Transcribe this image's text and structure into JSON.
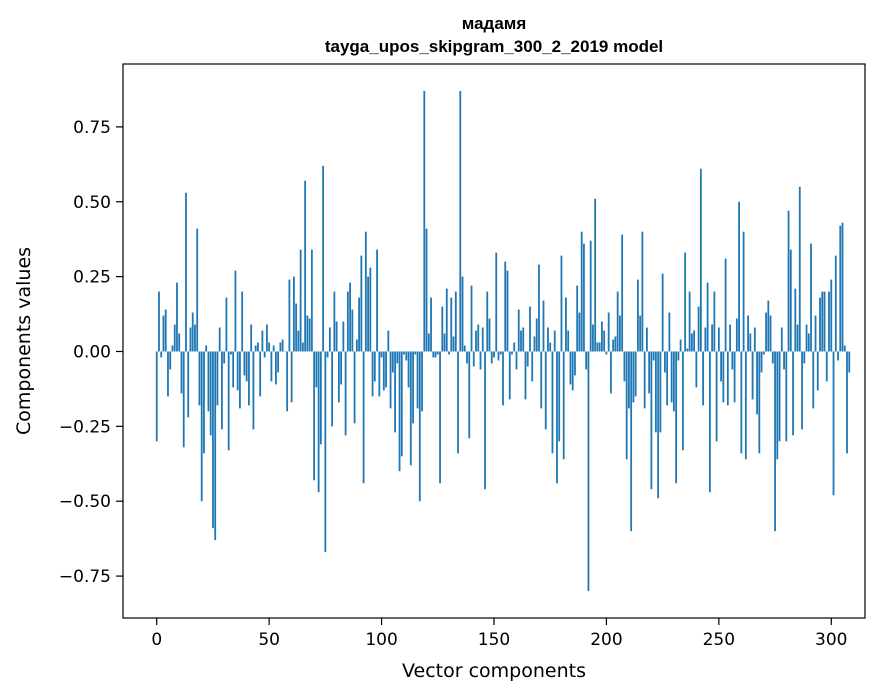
{
  "chart_data": {
    "type": "bar",
    "title": "мадамя",
    "subtitle": "tayga_upos_skipgram_300_2_2019 model",
    "xlabel": "Vector components",
    "ylabel": "Components values",
    "xlim": [
      -15,
      315
    ],
    "ylim": [
      -0.89,
      0.96
    ],
    "xticks": [
      0,
      50,
      100,
      150,
      200,
      250,
      300
    ],
    "xtick_labels": [
      "0",
      "50",
      "100",
      "150",
      "200",
      "250",
      "300"
    ],
    "yticks": [
      -0.75,
      -0.5,
      -0.25,
      0.0,
      0.25,
      0.5,
      0.75
    ],
    "ytick_labels": [
      "−0.75",
      "−0.50",
      "−0.25",
      "0.00",
      "0.25",
      "0.50",
      "0.75"
    ],
    "grid": false,
    "bar_color": "#1f77b4",
    "series": [
      {
        "values": [
          -0.3,
          0.2,
          -0.02,
          0.12,
          0.14,
          -0.15,
          -0.06,
          0.02,
          0.09,
          0.23,
          0.06,
          -0.14,
          -0.32,
          0.53,
          -0.22,
          0.08,
          0.13,
          0.09,
          0.41,
          -0.18,
          -0.5,
          -0.34,
          0.02,
          -0.2,
          -0.28,
          -0.59,
          -0.63,
          -0.18,
          0.08,
          -0.26,
          -0.04,
          0.18,
          -0.33,
          -0.01,
          -0.12,
          0.27,
          -0.13,
          -0.19,
          0.2,
          -0.08,
          -0.1,
          -0.18,
          0.09,
          -0.26,
          0.02,
          0.03,
          -0.15,
          0.07,
          -0.02,
          0.09,
          0.03,
          -0.1,
          0.02,
          -0.11,
          -0.07,
          0.03,
          0.04,
          0.0,
          -0.2,
          0.24,
          -0.17,
          0.25,
          0.16,
          0.07,
          0.34,
          0.03,
          0.57,
          0.12,
          0.11,
          0.34,
          -0.43,
          -0.12,
          -0.47,
          -0.31,
          0.62,
          -0.67,
          -0.02,
          0.08,
          -0.25,
          0.2,
          0.1,
          -0.17,
          -0.11,
          0.1,
          -0.28,
          0.2,
          0.23,
          0.14,
          -0.24,
          0.04,
          0.18,
          0.32,
          -0.44,
          0.4,
          0.25,
          0.28,
          -0.15,
          -0.1,
          0.34,
          -0.15,
          -0.02,
          -0.13,
          -0.12,
          0.07,
          -0.19,
          -0.07,
          -0.27,
          -0.04,
          -0.4,
          -0.35,
          -0.01,
          -0.03,
          -0.12,
          -0.38,
          -0.24,
          -0.01,
          -0.19,
          -0.5,
          -0.2,
          0.87,
          0.41,
          0.06,
          0.18,
          -0.02,
          -0.02,
          -0.01,
          -0.44,
          0.15,
          0.06,
          0.21,
          -0.01,
          0.18,
          0.05,
          0.2,
          -0.34,
          0.87,
          0.25,
          0.02,
          -0.04,
          -0.29,
          0.22,
          -0.05,
          0.07,
          0.09,
          -0.06,
          0.08,
          -0.46,
          0.2,
          0.11,
          -0.04,
          -0.02,
          0.33,
          -0.03,
          -0.01,
          -0.18,
          0.3,
          0.27,
          -0.16,
          -0.01,
          0.03,
          -0.06,
          0.14,
          0.07,
          0.08,
          -0.16,
          -0.05,
          0.15,
          -0.1,
          0.05,
          0.11,
          0.29,
          -0.19,
          0.17,
          -0.26,
          0.08,
          0.03,
          -0.34,
          0.07,
          -0.44,
          -0.3,
          0.32,
          -0.36,
          0.18,
          0.07,
          -0.11,
          -0.13,
          -0.08,
          0.22,
          0.13,
          0.4,
          0.36,
          -0.06,
          -0.8,
          0.37,
          0.09,
          0.51,
          0.03,
          0.03,
          0.1,
          0.07,
          -0.01,
          0.13,
          -0.14,
          0.04,
          0.05,
          0.2,
          0.12,
          0.39,
          -0.1,
          -0.36,
          -0.19,
          -0.6,
          -0.17,
          -0.15,
          0.24,
          0.12,
          0.4,
          -0.19,
          0.08,
          -0.14,
          -0.46,
          -0.03,
          -0.27,
          -0.49,
          -0.27,
          0.26,
          -0.07,
          -0.18,
          0.13,
          -0.17,
          -0.2,
          -0.44,
          -0.03,
          0.04,
          -0.33,
          0.33,
          0.01,
          0.2,
          0.06,
          0.07,
          -0.12,
          0.15,
          0.61,
          -0.18,
          0.08,
          0.23,
          -0.47,
          0.09,
          0.2,
          -0.3,
          0.08,
          -0.1,
          -0.17,
          0.31,
          -0.18,
          0.09,
          -0.06,
          -0.17,
          0.11,
          0.5,
          -0.34,
          0.4,
          -0.36,
          0.12,
          0.06,
          -0.16,
          0.08,
          -0.21,
          -0.34,
          -0.07,
          -0.01,
          0.13,
          0.17,
          0.12,
          -0.04,
          -0.6,
          -0.36,
          -0.3,
          0.08,
          -0.06,
          -0.3,
          0.47,
          0.34,
          -0.28,
          0.21,
          0.09,
          0.55,
          -0.26,
          -0.04,
          0.09,
          0.06,
          0.36,
          -0.19,
          0.12,
          -0.13,
          0.18,
          0.2,
          0.2,
          -0.1,
          0.2,
          0.24,
          -0.48,
          0.32,
          -0.03,
          0.42,
          0.43,
          0.02,
          -0.34,
          -0.07
        ]
      }
    ]
  }
}
